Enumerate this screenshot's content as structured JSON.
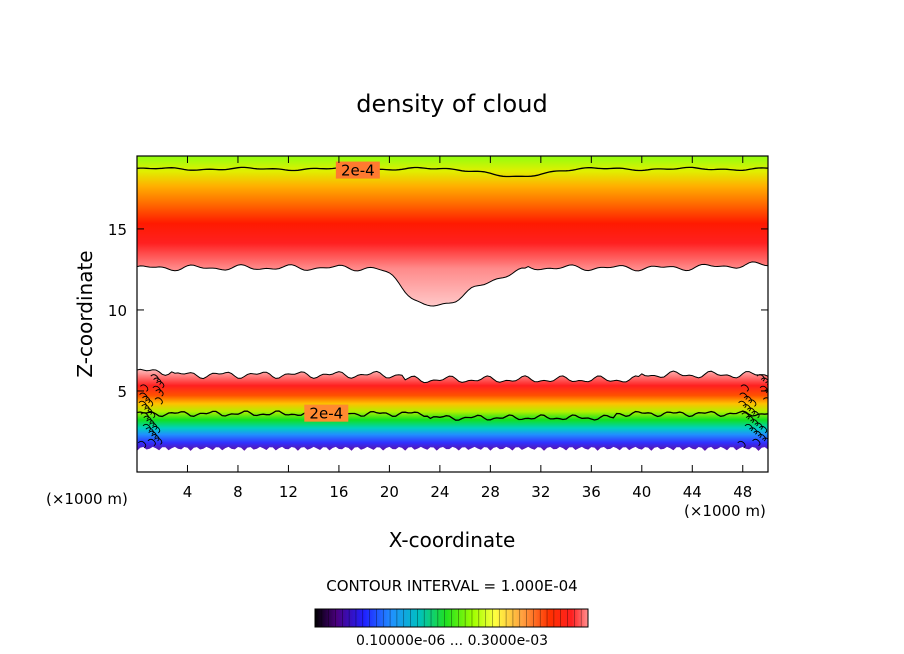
{
  "chart_data": {
    "type": "heatmap",
    "title": "density of cloud",
    "xlabel": "X-coordinate",
    "ylabel": "Z-coordinate",
    "x_unit": "(×1000 m)",
    "z_unit": "(×1000 m)",
    "xlim": [
      0,
      50
    ],
    "ylim": [
      0,
      19.5
    ],
    "x_ticks": [
      4,
      8,
      12,
      16,
      20,
      24,
      28,
      32,
      36,
      40,
      44,
      48
    ],
    "y_ticks": [
      5,
      10,
      15
    ],
    "contour_interval_text": "CONTOUR INTERVAL = 1.000E-04",
    "contour_labels": [
      {
        "text": "2e-4",
        "x": 17.5,
        "z": 18.6
      },
      {
        "text": "2e-4",
        "x": 15,
        "z": 3.6
      }
    ],
    "colorbar_labels_text": "0.10000e-06 ... 0.3000e-03",
    "colorbar": {
      "min": 1e-07,
      "max": 0.0003,
      "colors": [
        "#000000",
        "#4b0080",
        "#0000ff",
        "#0080ff",
        "#00c0c0",
        "#00ff00",
        "#80ff00",
        "#ffff00",
        "#ffa040",
        "#ff4000",
        "#ff0000",
        "#ff8080"
      ]
    },
    "bands": {
      "upper": {
        "base_z": 12.6,
        "top_z": 19.5,
        "contour_z": 18.7,
        "dip_center_x": 23,
        "dip_min_z": 10.2
      },
      "lower": {
        "bottom_z": 1.3,
        "top_z": 6.2,
        "contour_z": 3.6
      }
    }
  }
}
